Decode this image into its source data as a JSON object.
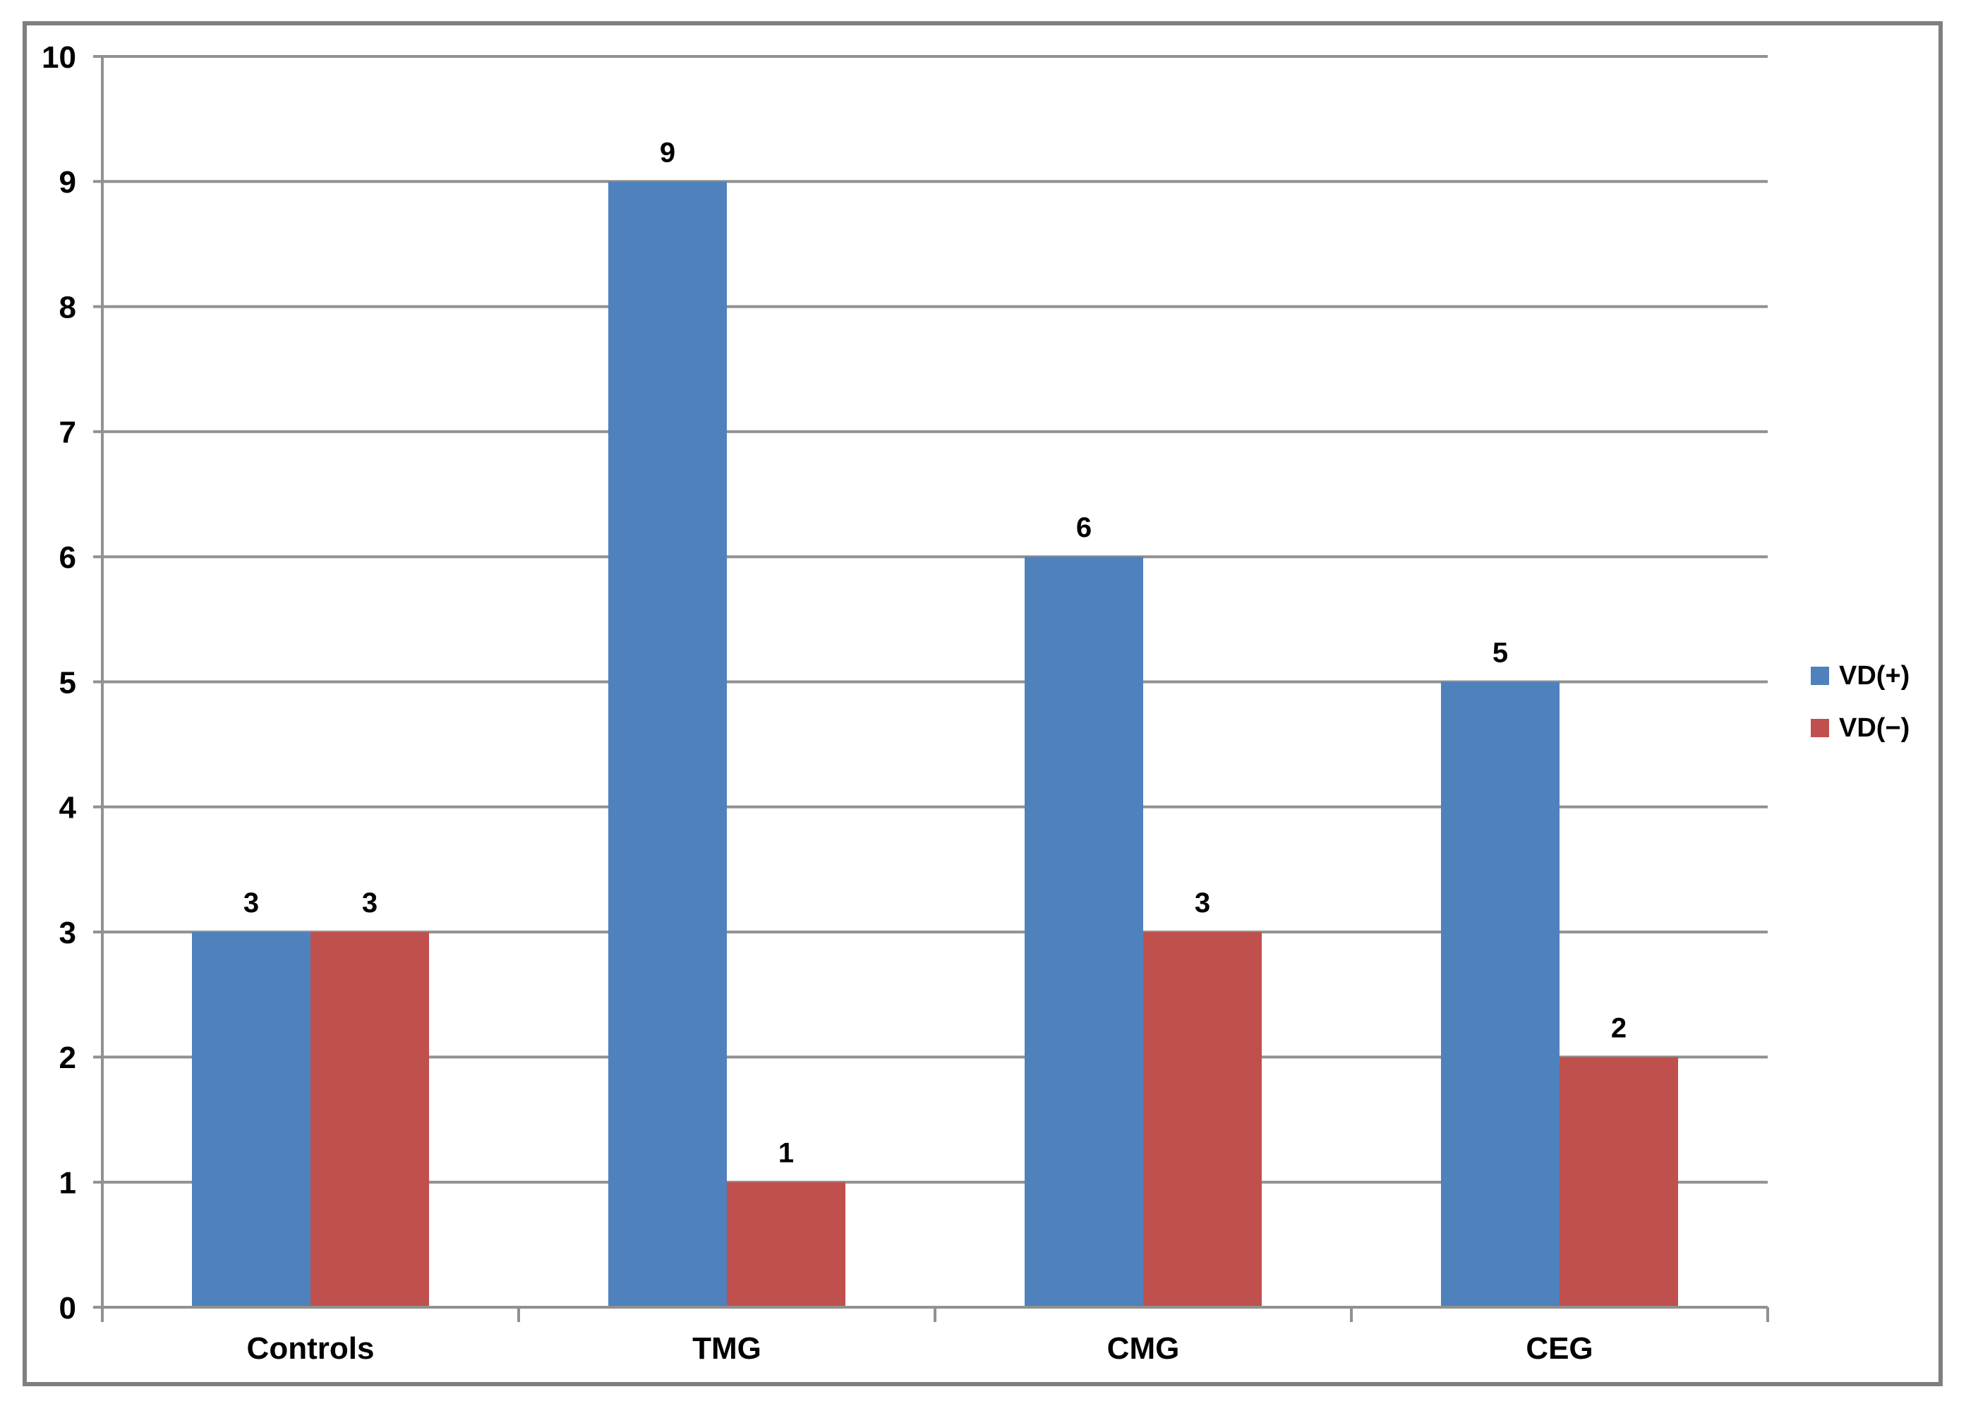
{
  "chart_data": {
    "type": "bar",
    "title": "",
    "xlabel": "",
    "ylabel": "",
    "categories": [
      "Controls",
      "TMG",
      "CMG",
      "CEG"
    ],
    "series": [
      {
        "name": "VD(+)",
        "color": "#4F81BD",
        "values": [
          3,
          9,
          6,
          5
        ]
      },
      {
        "name": "VD(−)",
        "color": "#C0504D",
        "values": [
          3,
          1,
          3,
          2
        ]
      }
    ],
    "ylim": [
      0,
      10
    ],
    "ytick_step": 1,
    "ytick_labels": [
      "0",
      "1",
      "2",
      "3",
      "4",
      "5",
      "6",
      "7",
      "8",
      "9",
      "10"
    ],
    "data_labels_shown": true,
    "grid": "horizontal",
    "legend_position": "right-middle",
    "colors": {
      "gridline": "#919191",
      "axis": "#919191",
      "figure_border": "#7F7F7F",
      "label_text": "#000000",
      "background": "#FFFFFF"
    }
  }
}
